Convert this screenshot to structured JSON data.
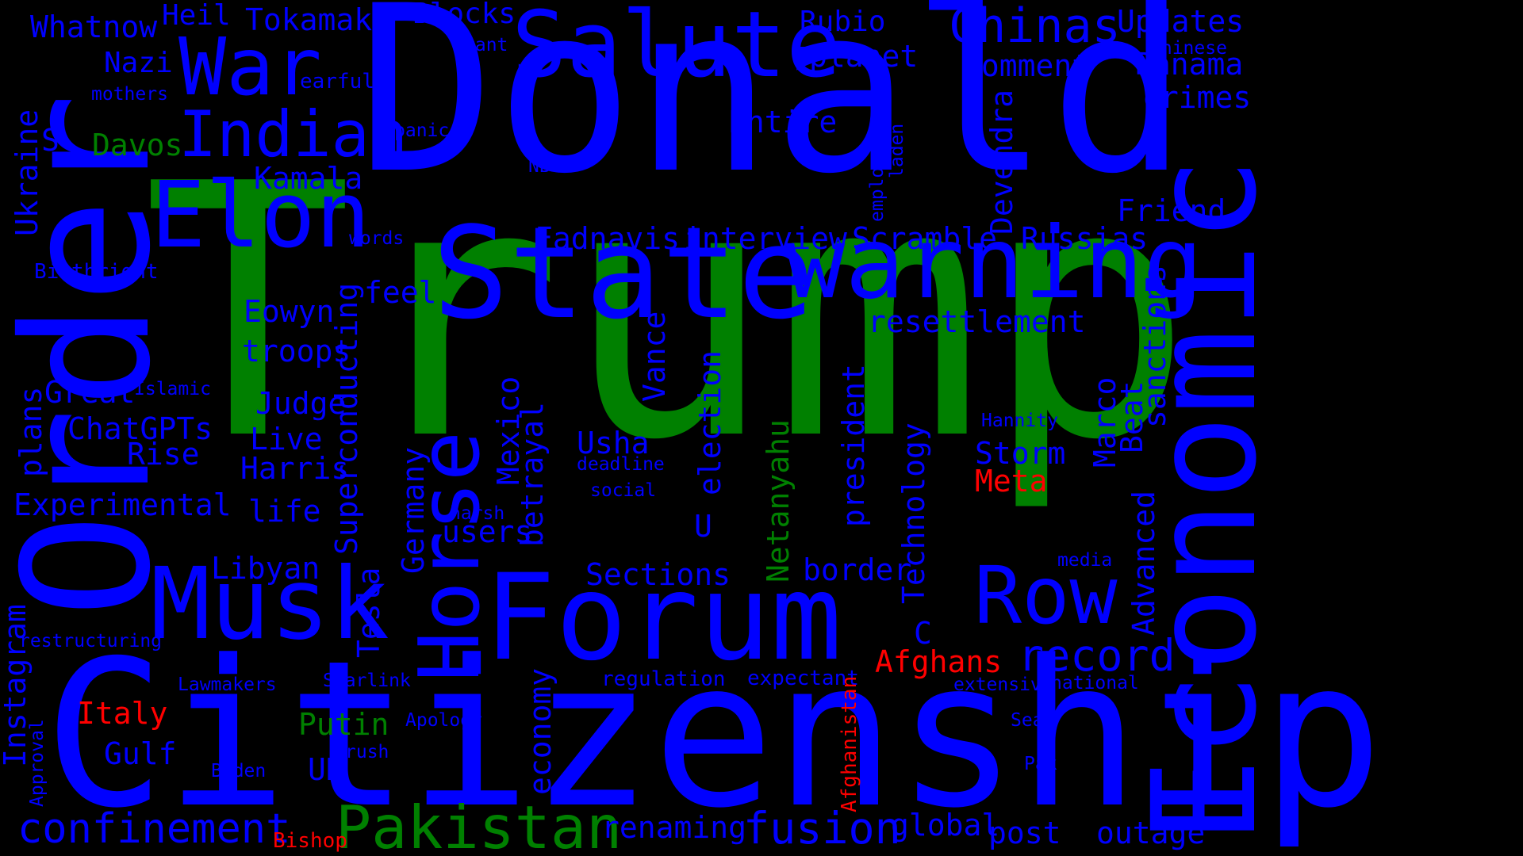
{
  "colors": {
    "background": "#000000",
    "blue": "#0000FF",
    "green": "#008000",
    "red": "#FF0000"
  },
  "words": {
    "trump": "Trump",
    "donald": "Donald",
    "citizenship": "Citizenship",
    "order": "Order",
    "economic": "Economic",
    "forum": "Forum",
    "state": "State",
    "warning": "warning",
    "salute": "Salute",
    "elon": "Elon",
    "musk": "Musk",
    "horse": "Horse",
    "war": "War",
    "indian": "Indian",
    "row": "Row",
    "pakistan": "Pakistan",
    "chinas": "Chinas",
    "record": "record",
    "confinement": "confinement",
    "fusion": "fusion",
    "afghans": "Afghans",
    "whatnow": "Whatnow",
    "heil": "Heil",
    "tokamak": "Tokamak",
    "blocks": "Blocks",
    "rubio": "Rubio",
    "updates": "Updates",
    "nazi": "Nazi",
    "earful": "earful",
    "rant": "rant",
    "planet": "planet",
    "comment": "Comment",
    "chinese": "Chinese",
    "panama": "Panama",
    "mothers": "mothers",
    "crimes": "crimes",
    "davos": "Davos",
    "s": "S",
    "panic": "panic",
    "entire": "Entire",
    "devendra": "Devendra",
    "employees": "employees",
    "laden": "laden",
    "nbc": "NBC",
    "kamala": "Kamala",
    "ukraine": "Ukraine",
    "friend": "Friend",
    "fadnavis": "Fadnavis",
    "interview": "interview",
    "scramble": "Scramble",
    "russias": "Russias",
    "words": "words",
    "birthright": "Birthright",
    "feel": "feel",
    "eowyn": "Eowyn",
    "superconducting": "Superconducting",
    "resettlement": "resettlement",
    "sanctions": "sanctions",
    "troops": "troops",
    "vance": "Vance",
    "plans": "plans",
    "great": "Great",
    "islamic": "Islamic",
    "judge": "Judge",
    "election": "election",
    "president": "president",
    "marco": "Marco",
    "beat": "Beat",
    "chatgpts": "ChatGPTs",
    "hannity": "Hannity",
    "mexico": "Mexico",
    "rise": "Rise",
    "live": "Live",
    "netanyahu": "Netanyahu",
    "technology": "Technology",
    "usha": "Usha",
    "harris": "Harris",
    "betrayal": "betrayal",
    "storm": "Storm",
    "deadline": "deadline",
    "meta": "Meta",
    "experimental": "Experimental",
    "social": "social",
    "life": "life",
    "germany": "Germany",
    "harsh": "harsh",
    "users": "users",
    "u": "U",
    "advanced": "Advanced",
    "libyan": "Libyan",
    "tesla": "Tesla",
    "sections": "Sections",
    "border": "border",
    "media": "media",
    "c": "C",
    "instagram": "Instagram",
    "restructuring": "restructuring",
    "starlink": "Starlink",
    "regulation": "regulation",
    "expectant": "expectant",
    "afghanistan": "Afghanistan",
    "lawmakers": "Lawmakers",
    "extensive": "extensive",
    "national": "national",
    "italy": "Italy",
    "economy": "economy",
    "apology": "Apology",
    "putin": "Putin",
    "approval": "Approval",
    "sean": "Sean",
    "gulf": "Gulf",
    "rush": "rush",
    "pak": "Pak",
    "biden": "Biden",
    "uk": "UK",
    "renaming": "renaming",
    "global": "global",
    "post": "post",
    "outage": "outage",
    "bishop": "Bishop"
  }
}
